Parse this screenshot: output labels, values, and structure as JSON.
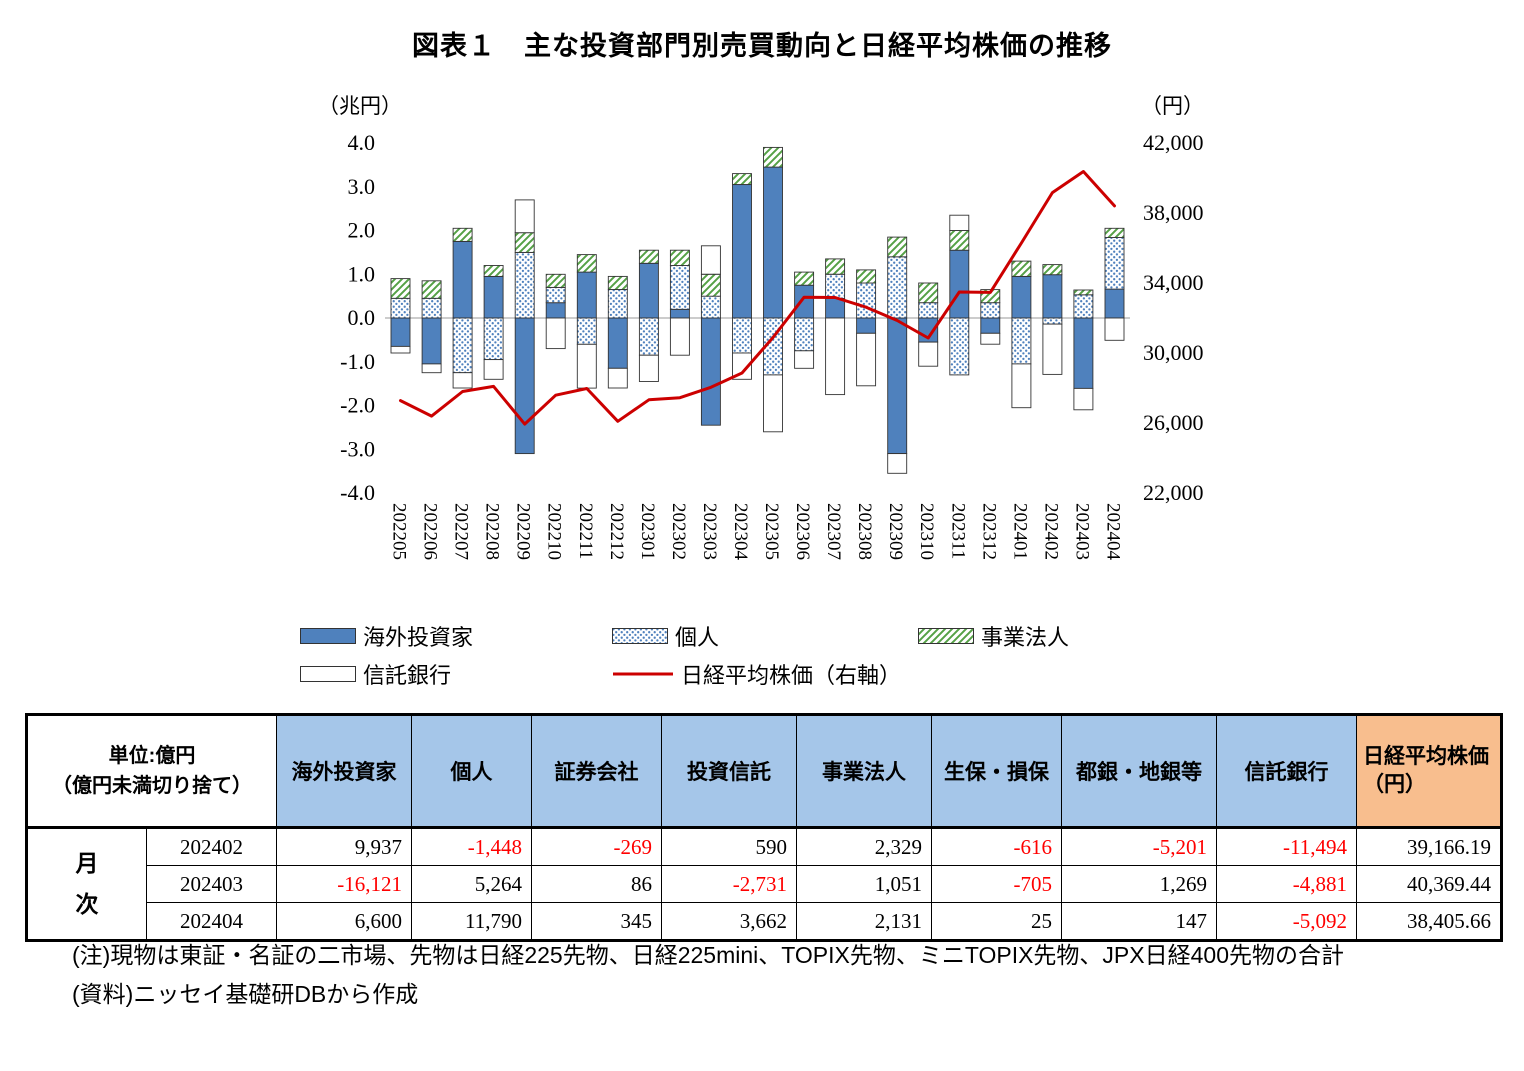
{
  "title": "図表１　主な投資部門別売買動向と日経平均株価の推移",
  "chart": {
    "left_axis_unit": "（兆円）",
    "right_axis_unit": "（円）",
    "left_ticks": [
      "4.0",
      "3.0",
      "2.0",
      "1.0",
      "0.0",
      "-1.0",
      "-2.0",
      "-3.0",
      "-4.0"
    ],
    "right_ticks": [
      "42,000",
      "38,000",
      "34,000",
      "30,000",
      "26,000",
      "22,000"
    ]
  },
  "chart_data": {
    "type": "stacked-bar+line",
    "title": "主な投資部門別売買動向と日経平均株価の推移",
    "bar_unit": "兆円",
    "line_unit": "円",
    "ylabel_left": "（兆円）",
    "ylabel_right": "（円）",
    "ylim_left": [
      -4.0,
      4.0
    ],
    "ylim_right": [
      22000,
      42000
    ],
    "categories": [
      "202205",
      "202206",
      "202207",
      "202208",
      "202209",
      "202210",
      "202211",
      "202212",
      "202301",
      "202302",
      "202303",
      "202304",
      "202305",
      "202306",
      "202307",
      "202308",
      "202309",
      "202310",
      "202311",
      "202312",
      "202401",
      "202402",
      "202403",
      "202404"
    ],
    "bar_series": [
      {
        "name": "海外投資家",
        "style": "solid-blue",
        "color": "#4F81BD",
        "values": [
          -0.65,
          -1.05,
          1.75,
          0.95,
          -3.1,
          0.35,
          1.05,
          -1.15,
          1.25,
          0.2,
          -2.45,
          3.05,
          3.45,
          0.75,
          0.45,
          -0.35,
          -3.1,
          -0.55,
          1.55,
          -0.35,
          0.95,
          0.99,
          -1.61,
          0.66
        ]
      },
      {
        "name": "個人",
        "style": "dotted",
        "color": "#4F81BD",
        "values": [
          0.45,
          0.45,
          -1.25,
          -0.95,
          1.5,
          0.35,
          -0.6,
          0.65,
          -0.85,
          1.0,
          0.5,
          -0.8,
          -1.3,
          -0.75,
          0.55,
          0.8,
          1.4,
          0.35,
          -1.3,
          0.35,
          -1.05,
          -0.14,
          0.53,
          1.18
        ]
      },
      {
        "name": "事業法人",
        "style": "green-hatch",
        "color": "#55A146",
        "values": [
          0.45,
          0.4,
          0.3,
          0.25,
          0.45,
          0.3,
          0.4,
          0.3,
          0.3,
          0.35,
          0.5,
          0.25,
          0.45,
          0.3,
          0.35,
          0.3,
          0.45,
          0.45,
          0.45,
          0.3,
          0.35,
          0.23,
          0.11,
          0.21
        ]
      },
      {
        "name": "信託銀行",
        "style": "white",
        "color": "#FFFFFF",
        "values": [
          -0.15,
          -0.2,
          -0.35,
          -0.45,
          0.75,
          -0.7,
          -1.0,
          -0.45,
          -0.6,
          -0.85,
          0.65,
          -0.6,
          -1.3,
          -0.4,
          -1.75,
          -1.2,
          -0.45,
          -0.55,
          0.35,
          -0.25,
          -1.0,
          -1.15,
          -0.49,
          -0.51
        ]
      }
    ],
    "line_series": {
      "name": "日経平均株価（右軸）",
      "color": "#CC0000",
      "axis": "right",
      "values": [
        27280,
        26393,
        27801,
        28092,
        25937,
        27587,
        27969,
        26095,
        27327,
        27446,
        28041,
        28856,
        30888,
        33189,
        33172,
        32619,
        31858,
        30859,
        33487,
        33464,
        36287,
        39166,
        40369,
        38406
      ]
    }
  },
  "legend": {
    "items": [
      {
        "label": "海外投資家",
        "swatch": "solid"
      },
      {
        "label": "個人",
        "swatch": "dots"
      },
      {
        "label": "事業法人",
        "swatch": "hatch"
      },
      {
        "label": "信託銀行",
        "swatch": "white"
      },
      {
        "label": "日経平均株価（右軸）",
        "swatch": "line"
      }
    ]
  },
  "table": {
    "unit_line1": "単位:億円",
    "unit_line2": "（億円未満切り捨て）",
    "columns": [
      "海外投資家",
      "個人",
      "証券会社",
      "投資信託",
      "事業法人",
      "生保・損保",
      "都銀・地銀等",
      "信託銀行"
    ],
    "nikkei": {
      "label": "日経平均株価",
      "unit": "（円）"
    },
    "row_group_label": "月次",
    "rows": [
      {
        "month": "202402",
        "values": [
          "9,937",
          "-1,448",
          "-269",
          "590",
          "2,329",
          "-616",
          "-5,201",
          "-11,494",
          "39,166.19"
        ]
      },
      {
        "month": "202403",
        "values": [
          "-16,121",
          "5,264",
          "86",
          "-2,731",
          "1,051",
          "-705",
          "1,269",
          "-4,881",
          "40,369.44"
        ]
      },
      {
        "month": "202404",
        "values": [
          "6,600",
          "11,790",
          "345",
          "3,662",
          "2,131",
          "25",
          "147",
          "-5,092",
          "38,405.66"
        ]
      }
    ]
  },
  "notes": {
    "note": "(注)現物は東証・名証の二市場、先物は日経225先物、日経225mini、TOPIX先物、ミニTOPIX先物、JPX日経400先物の合計",
    "source": "(資料)ニッセイ基礎研DBから作成"
  },
  "colors": {
    "bar_blue": "#4F81BD",
    "hatch_green": "#55A146",
    "line_red": "#CC0000",
    "table_header_blue": "#A5C6E9",
    "table_header_orange": "#F8BE8E",
    "negative_red": "#FF0000"
  }
}
